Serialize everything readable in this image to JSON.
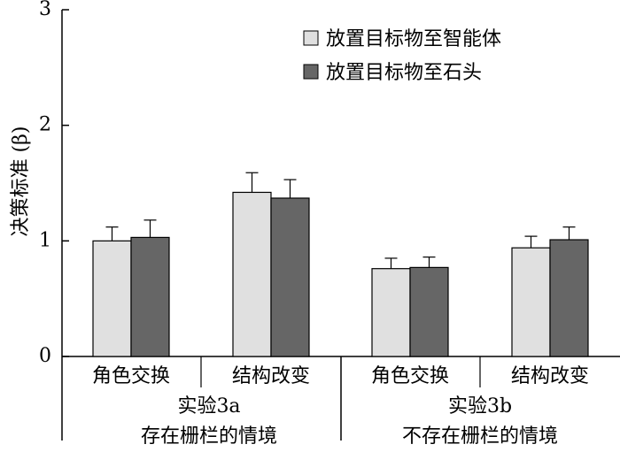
{
  "chart_data": {
    "type": "bar",
    "ylabel": "决策标准 (β)",
    "ylim": [
      0,
      3
    ],
    "yticks": [
      "0",
      "1",
      "2",
      "3"
    ],
    "categories": [
      "角色交换",
      "结构改变",
      "角色交换",
      "结构改变"
    ],
    "groups": [
      {
        "label": "实验3a",
        "sublabel": "存在栅栏的情境",
        "category_indices": [
          0,
          1
        ]
      },
      {
        "label": "实验3b",
        "sublabel": "不存在栅栏的情境",
        "category_indices": [
          2,
          3
        ]
      }
    ],
    "series": [
      {
        "name": "放置目标物至智能体",
        "color": "#e0e0e0",
        "values": [
          1.0,
          1.42,
          0.76,
          0.94
        ],
        "errors": [
          0.12,
          0.17,
          0.09,
          0.1
        ]
      },
      {
        "name": "放置目标物至石头",
        "color": "#666666",
        "values": [
          1.03,
          1.37,
          0.77,
          1.01
        ],
        "errors": [
          0.15,
          0.16,
          0.09,
          0.11
        ]
      }
    ],
    "legend_position": "top-right",
    "error_bars": true,
    "grid": false
  }
}
